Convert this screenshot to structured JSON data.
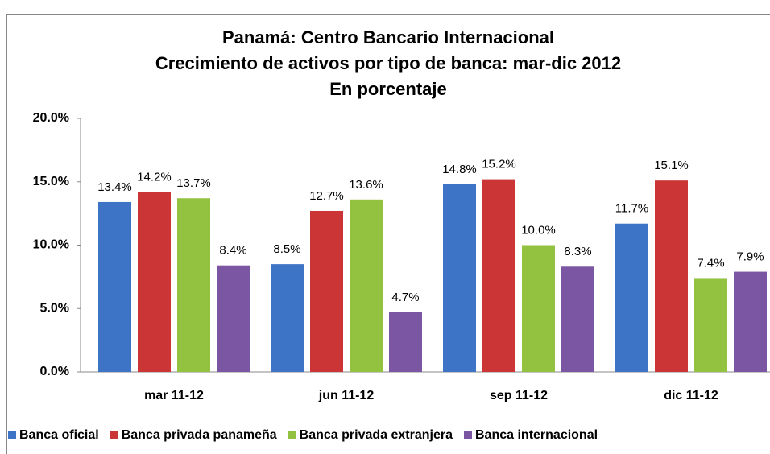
{
  "chart_data": {
    "type": "bar",
    "title": [
      "Panamá: Centro Bancario Internacional",
      "Crecimiento de activos por tipo de banca: mar-dic 2012",
      "En porcentaje"
    ],
    "categories": [
      "mar 11-12",
      "jun 11-12",
      "sep 11-12",
      "dic 11-12"
    ],
    "series": [
      {
        "name": "Banca oficial",
        "color": "#3d74c6",
        "values": [
          13.4,
          8.5,
          14.8,
          11.7
        ],
        "value_labels": [
          "13.4%",
          "8.5%",
          "14.8%",
          "11.7%"
        ]
      },
      {
        "name": "Banca privada panameña",
        "color": "#cc3535",
        "values": [
          14.2,
          12.7,
          15.2,
          15.1
        ],
        "value_labels": [
          "14.2%",
          "12.7%",
          "15.2%",
          "15.1%"
        ]
      },
      {
        "name": "Banca privada extranjera",
        "color": "#93c140",
        "values": [
          13.7,
          13.6,
          10.0,
          7.4
        ],
        "value_labels": [
          "13.7%",
          "13.6%",
          "10.0%",
          "7.4%"
        ]
      },
      {
        "name": "Banca internacional",
        "color": "#7b57a3",
        "values": [
          8.4,
          4.7,
          8.3,
          7.9
        ],
        "value_labels": [
          "8.4%",
          "4.7%",
          "8.3%",
          "7.9%"
        ]
      }
    ],
    "ylim": [
      0,
      20
    ],
    "yticks": [
      {
        "value": 0,
        "label": "0.0%"
      },
      {
        "value": 5,
        "label": "5.0%"
      },
      {
        "value": 10,
        "label": "10.0%"
      },
      {
        "value": 15,
        "label": "15.0%"
      },
      {
        "value": 20,
        "label": "20.0%"
      }
    ],
    "grid": false,
    "legend": "bottom"
  }
}
